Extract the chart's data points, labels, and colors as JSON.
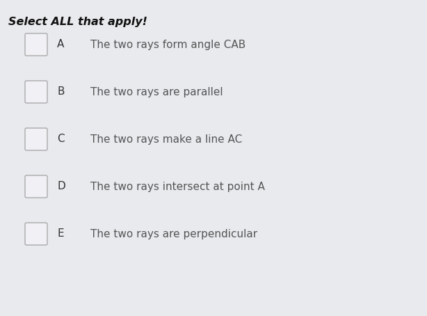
{
  "title": "Select ALL that apply!",
  "background_color": "#e8eaed",
  "options": [
    {
      "label": "A",
      "text": "The two rays form angle CAB"
    },
    {
      "label": "B",
      "text": "The two rays are parallel"
    },
    {
      "label": "C",
      "text": "The two rays make a line AC"
    },
    {
      "label": "D",
      "text": "The two rays intersect at point A"
    },
    {
      "label": "E",
      "text": "The two rays are perpendicular"
    }
  ],
  "title_fontsize": 11.5,
  "label_fontsize": 11,
  "text_fontsize": 11,
  "text_color": "#555555",
  "label_color": "#333333",
  "title_color": "#111111",
  "checkbox_color": "#f0f0f5",
  "checkbox_edge_color": "#aaaaaa",
  "checkbox_linewidth": 1.0
}
